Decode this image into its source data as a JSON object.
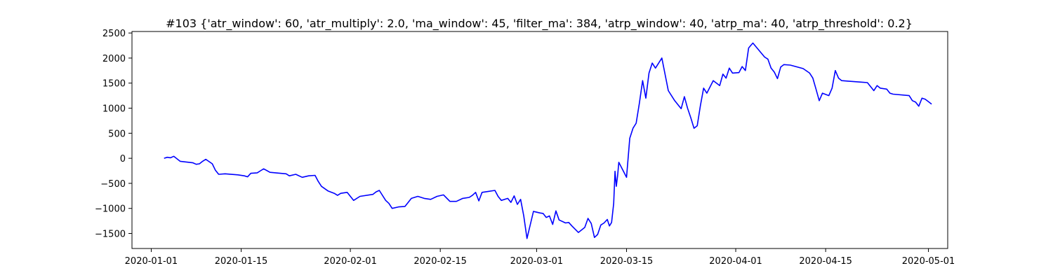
{
  "chart_data": {
    "type": "line",
    "title": "#103 {'atr_window': 60, 'atr_multiply': 2.0, 'ma_window': 45, 'filter_ma': 384, 'atrp_window': 40, 'atrp_ma': 40, 'atrp_threshold': 0.2}",
    "xlabel": "",
    "ylabel": "",
    "xlim": [
      "2019-12-29",
      "2020-05-04"
    ],
    "ylim": [
      -1800,
      2530
    ],
    "grid": false,
    "legend": "none",
    "line_color": "#0000ff",
    "x_ticks": [
      "2020-01-01",
      "2020-01-15",
      "2020-02-01",
      "2020-02-15",
      "2020-03-01",
      "2020-03-15",
      "2020-04-01",
      "2020-04-15",
      "2020-05-01"
    ],
    "y_ticks": [
      -1500,
      -1000,
      -500,
      0,
      500,
      1000,
      1500,
      2000,
      2500
    ],
    "series": [
      {
        "x": [
          "2020-01-03",
          "2020-01-03",
          "2020-01-04",
          "2020-01-04",
          "2020-01-05",
          "2020-01-07",
          "2020-01-08",
          "2020-01-08",
          "2020-01-09",
          "2020-01-09",
          "2020-01-10",
          "2020-01-11",
          "2020-01-11",
          "2020-01-12",
          "2020-01-14",
          "2020-01-15",
          "2020-01-16",
          "2020-01-16",
          "2020-01-17",
          "2020-01-18",
          "2020-01-18",
          "2020-01-19",
          "2020-01-22",
          "2020-01-22",
          "2020-01-23",
          "2020-01-24",
          "2020-01-25",
          "2020-01-26",
          "2020-01-27",
          "2020-01-27",
          "2020-01-28",
          "2020-01-29",
          "2020-01-30",
          "2020-01-30",
          "2020-01-31",
          "2020-02-01",
          "2020-02-02",
          "2020-02-04",
          "2020-02-05",
          "2020-02-05",
          "2020-02-06",
          "2020-02-07",
          "2020-02-07",
          "2020-02-08",
          "2020-02-09",
          "2020-02-10",
          "2020-02-11",
          "2020-02-12",
          "2020-02-13",
          "2020-02-14",
          "2020-02-15",
          "2020-02-16",
          "2020-02-17",
          "2020-02-18",
          "2020-02-19",
          "2020-02-20",
          "2020-02-20",
          "2020-02-21",
          "2020-02-21",
          "2020-02-22",
          "2020-02-23",
          "2020-02-24",
          "2020-02-24",
          "2020-02-25",
          "2020-02-26",
          "2020-02-26",
          "2020-02-27",
          "2020-02-27",
          "2020-02-28",
          "2020-02-28",
          "2020-02-29",
          "2020-03-01",
          "2020-03-02",
          "2020-03-02",
          "2020-03-03",
          "2020-03-03",
          "2020-03-04",
          "2020-03-04",
          "2020-03-05",
          "2020-03-06",
          "2020-03-06",
          "2020-03-07",
          "2020-03-08",
          "2020-03-09",
          "2020-03-09",
          "2020-03-10",
          "2020-03-10",
          "2020-03-11",
          "2020-03-11",
          "2020-03-12",
          "2020-03-12",
          "2020-03-12",
          "2020-03-13",
          "2020-03-13",
          "2020-03-13",
          "2020-03-13",
          "2020-03-13",
          "2020-03-15",
          "2020-03-15",
          "2020-03-16",
          "2020-03-16",
          "2020-03-17",
          "2020-03-17",
          "2020-03-18",
          "2020-03-18",
          "2020-03-19",
          "2020-03-19",
          "2020-03-20",
          "2020-03-21",
          "2020-03-22",
          "2020-03-23",
          "2020-03-24",
          "2020-03-24",
          "2020-03-25",
          "2020-03-25",
          "2020-03-26",
          "2020-03-26",
          "2020-03-27",
          "2020-03-27",
          "2020-03-28",
          "2020-03-29",
          "2020-03-30",
          "2020-03-30",
          "2020-03-31",
          "2020-03-31",
          "2020-04-01",
          "2020-04-02",
          "2020-04-02",
          "2020-04-03",
          "2020-04-03",
          "2020-04-03",
          "2020-04-05",
          "2020-04-06",
          "2020-04-06",
          "2020-04-07",
          "2020-04-07",
          "2020-04-08",
          "2020-04-08",
          "2020-04-09",
          "2020-04-11",
          "2020-04-12",
          "2020-04-13",
          "2020-04-13",
          "2020-04-14",
          "2020-04-14",
          "2020-04-15",
          "2020-04-16",
          "2020-04-16",
          "2020-04-17",
          "2020-04-17",
          "2020-04-18",
          "2020-04-20",
          "2020-04-21",
          "2020-04-22",
          "2020-04-23",
          "2020-04-23",
          "2020-04-24",
          "2020-04-25",
          "2020-04-25",
          "2020-04-28",
          "2020-04-28",
          "2020-04-29",
          "2020-04-29",
          "2020-04-30",
          "2020-04-30",
          "2020-05-01"
        ],
        "values": [
          0,
          20,
          10,
          40,
          -60,
          -90,
          -120,
          -110,
          -60,
          -20,
          -110,
          -240,
          -320,
          -310,
          -330,
          -350,
          -370,
          -300,
          -290,
          -250,
          -210,
          -280,
          -310,
          -350,
          -320,
          -380,
          -350,
          -340,
          -460,
          -560,
          -650,
          -700,
          -740,
          -700,
          -680,
          -840,
          -760,
          -720,
          -670,
          -640,
          -840,
          -900,
          -1000,
          -970,
          -960,
          -800,
          -760,
          -800,
          -820,
          -760,
          -730,
          -860,
          -860,
          -800,
          -780,
          -740,
          -680,
          -850,
          -680,
          -660,
          -640,
          -760,
          -840,
          -800,
          -880,
          -750,
          -920,
          -820,
          -1150,
          -1600,
          -1060,
          -1090,
          -1100,
          -1180,
          -1150,
          -1320,
          -1050,
          -1230,
          -1290,
          -1280,
          -1350,
          -1480,
          -1380,
          -1200,
          -1300,
          -1580,
          -1520,
          -1330,
          -1290,
          -1220,
          -1350,
          -1280,
          -900,
          -260,
          -560,
          -360,
          -80,
          -380,
          400,
          600,
          700,
          1100,
          1550,
          1200,
          1700,
          1900,
          1800,
          2000,
          1350,
          1150,
          990,
          1230,
          1000,
          810,
          600,
          650,
          1050,
          1400,
          1300,
          1550,
          1450,
          1680,
          1600,
          1800,
          1700,
          1710,
          1830,
          1750,
          2200,
          2250,
          2300,
          2020,
          1980,
          1800,
          1720,
          1590,
          1820,
          1870,
          1860,
          1790,
          1700,
          1600,
          1380,
          1150,
          1300,
          1250,
          1400,
          1750,
          1600,
          1550,
          1540,
          1520,
          1510,
          1350,
          1450,
          1400,
          1380,
          1300,
          1280,
          1250,
          1150,
          1120,
          1040,
          1200,
          1180,
          1080
        ]
      }
    ]
  }
}
